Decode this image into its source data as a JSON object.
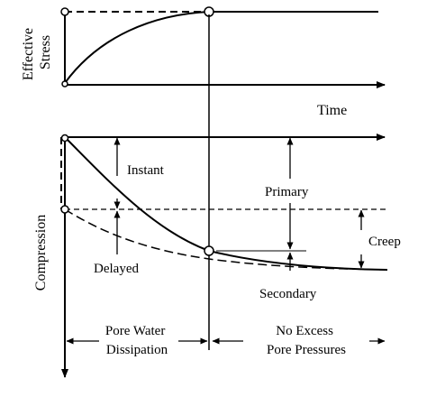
{
  "top_panel": {
    "y_label_line1": "Effective",
    "y_label_line2": "Stress",
    "x_label": "Time"
  },
  "bottom_panel": {
    "y_label": "Compression",
    "labels": {
      "instant": "Instant",
      "delayed": "Delayed",
      "primary": "Primary",
      "creep": "Creep",
      "secondary": "Secondary"
    },
    "phases": {
      "left_line1": "Pore Water",
      "left_line2": "Dissipation",
      "right_line1": "No Excess",
      "right_line2": "Pore Pressures"
    }
  }
}
